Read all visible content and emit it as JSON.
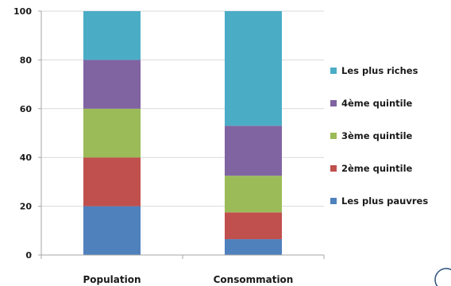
{
  "chart_data": {
    "type": "bar",
    "stacked": true,
    "categories": [
      "Population",
      "Consommation"
    ],
    "series": [
      {
        "name": "Les plus pauvres",
        "color": "#4f81bd",
        "values": [
          20,
          6.5
        ]
      },
      {
        "name": "2ème quintile",
        "color": "#c0504d",
        "values": [
          20,
          11
        ]
      },
      {
        "name": "3ème quintile",
        "color": "#9bbb59",
        "values": [
          20,
          15
        ]
      },
      {
        "name": "4ème quintile",
        "color": "#8064a2",
        "values": [
          20,
          20.5
        ]
      },
      {
        "name": "Les plus riches",
        "color": "#4bacc6",
        "values": [
          20,
          47
        ]
      }
    ],
    "yticks": [
      0,
      20,
      40,
      60,
      80,
      100
    ],
    "ylim": [
      0,
      100
    ],
    "grid": true,
    "legend_position": "right"
  }
}
